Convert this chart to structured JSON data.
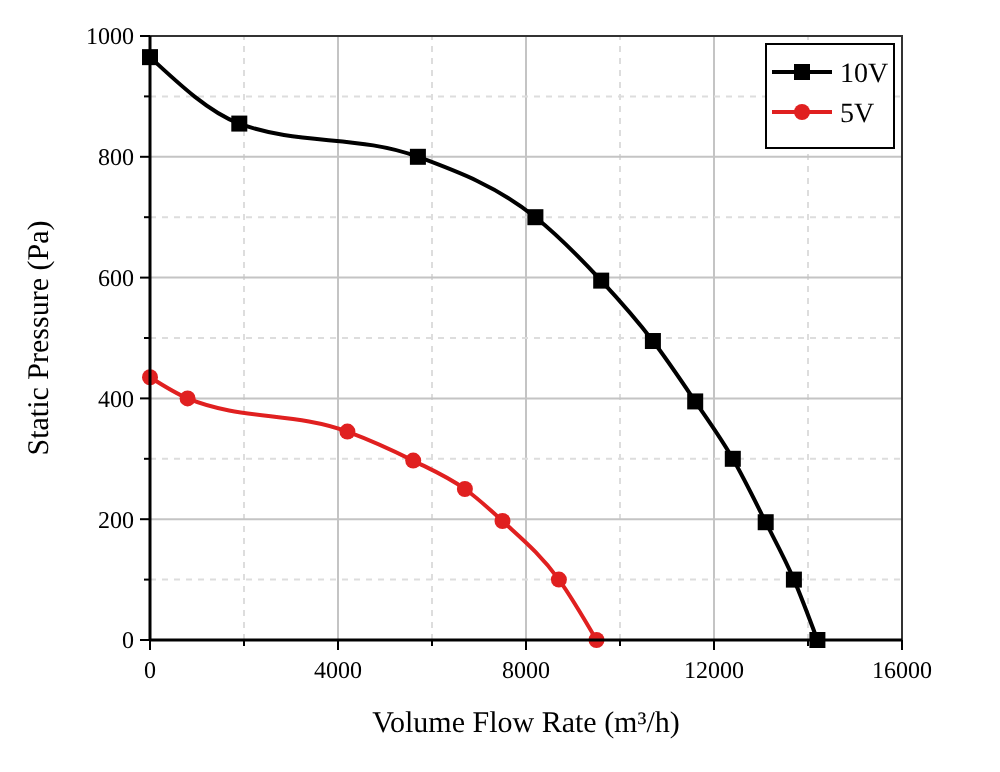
{
  "chart_data": {
    "type": "line",
    "xlabel": "Volume Flow Rate (m³/h)",
    "ylabel": "Static Pressure (Pa)",
    "xlim": [
      0,
      16000
    ],
    "xticks": [
      0,
      {
        "value": 2000,
        "label": null
      },
      4000,
      {
        "value": 6000,
        "label": null
      },
      8000,
      {
        "value": 10000,
        "label": null
      },
      12000,
      {
        "value": 14000,
        "label": null
      },
      16000
    ],
    "ylim": [
      0,
      1000
    ],
    "yticks": [
      0,
      {
        "value": 100,
        "label": null
      },
      200,
      {
        "value": 300,
        "label": null
      },
      400,
      {
        "value": 500,
        "label": null
      },
      600,
      {
        "value": 700,
        "label": null
      },
      800,
      {
        "value": 900,
        "label": null
      },
      1000
    ],
    "grid": true,
    "legend": "top right",
    "line_style": "solid",
    "series": [
      {
        "name": "10V",
        "color": "#000000",
        "marker": "square",
        "x": [
          0,
          1900,
          5700,
          8200,
          9600,
          10700,
          11600,
          12400,
          13100,
          13700,
          14200
        ],
        "values": [
          965,
          855,
          800,
          700,
          595,
          495,
          395,
          300,
          195,
          100,
          0
        ]
      },
      {
        "name": "5V",
        "color": "#e02020",
        "marker": "circle",
        "x": [
          0,
          800,
          4200,
          5600,
          6700,
          7500,
          8700,
          9500
        ],
        "values": [
          435,
          400,
          345,
          297,
          250,
          197,
          100,
          0
        ]
      }
    ]
  }
}
